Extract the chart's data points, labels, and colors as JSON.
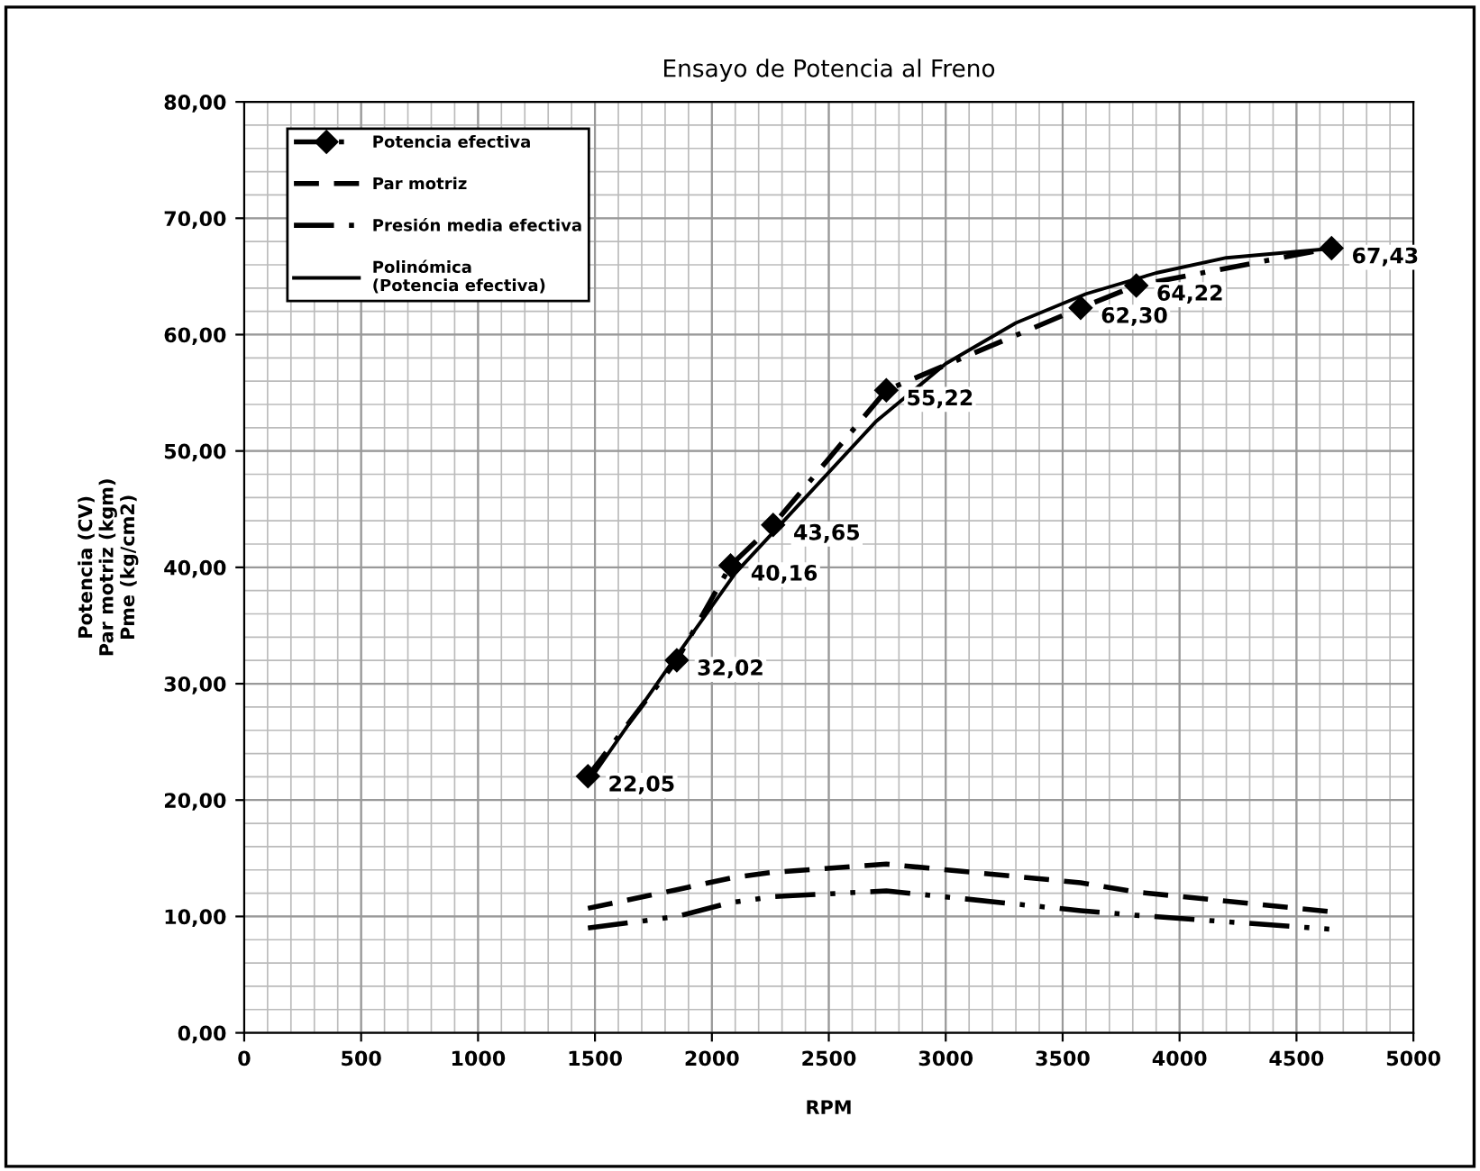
{
  "chart_data": {
    "type": "line",
    "title": "Ensayo de Potencia al Freno",
    "xlabel": "RPM",
    "ylabel": "Potencia (CV)\nPar motriz (kgm)\nPme (kg/cm2)",
    "xlim": [
      0,
      5000
    ],
    "xticks": [
      0,
      500,
      1000,
      1500,
      2000,
      2500,
      3000,
      3500,
      4000,
      4500,
      5000
    ],
    "ylim": [
      0,
      80
    ],
    "yticks": [
      {
        "value": 0,
        "label": "0,00"
      },
      {
        "value": 10,
        "label": "10,00"
      },
      {
        "value": 20,
        "label": "20,00"
      },
      {
        "value": 30,
        "label": "30,00"
      },
      {
        "value": 40,
        "label": "40,00"
      },
      {
        "value": 50,
        "label": "50,00"
      },
      {
        "value": 60,
        "label": "60,00"
      },
      {
        "value": 70,
        "label": "70,00"
      },
      {
        "value": 80,
        "label": "80,00"
      }
    ],
    "grid": true,
    "legend": "top left",
    "x": [
      1470,
      1850,
      2080,
      2262,
      2746,
      3577,
      3815,
      4650
    ],
    "series": [
      {
        "name": "Potencia efectiva",
        "color": "#000000",
        "values": [
          22.05,
          32.02,
          40.16,
          43.65,
          55.22,
          62.3,
          64.22,
          67.43
        ],
        "marker": "diamond",
        "line_style": "dashdot",
        "value_labels": [
          "22,05",
          "32,02",
          "40,16",
          "43,65",
          "55,22",
          "62,30",
          "64,22",
          "67,43"
        ]
      },
      {
        "name": "Par motriz",
        "color": "#000000",
        "values": [
          10.7,
          12.3,
          13.3,
          13.8,
          14.5,
          12.9,
          12.1,
          10.4
        ],
        "marker": "none",
        "line_style": "dashed"
      },
      {
        "name": "Presión media efectiva",
        "color": "#000000",
        "values": [
          9.0,
          10.0,
          11.2,
          11.7,
          12.2,
          10.5,
          10.1,
          8.9
        ],
        "marker": "none",
        "line_style": "dashdotdot"
      },
      {
        "name": "Polinómica (Potencia efectiva)",
        "color": "#000000",
        "x": [
          1470,
          1800,
          2100,
          2400,
          2700,
          3000,
          3300,
          3600,
          3900,
          4200,
          4650
        ],
        "values": [
          21.5,
          31,
          39.5,
          46,
          52.5,
          57.5,
          61,
          63.5,
          65.3,
          66.6,
          67.4
        ],
        "marker": "none",
        "line_style": "solid"
      }
    ]
  }
}
